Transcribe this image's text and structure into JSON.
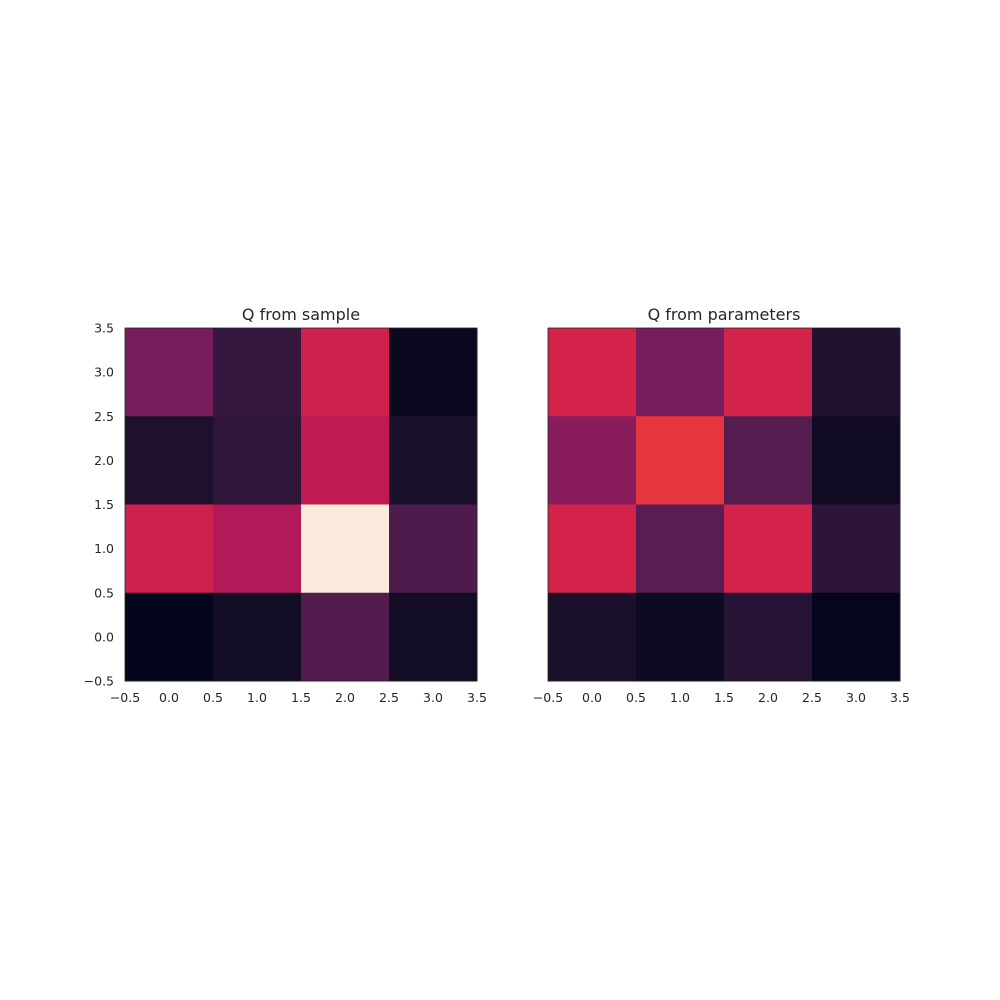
{
  "chart_data": [
    {
      "type": "heatmap",
      "title": "Q from sample",
      "xlabel": "",
      "ylabel": "",
      "xlim": [
        -0.5,
        3.5
      ],
      "ylim": [
        3.5,
        -0.5
      ],
      "xticks": [
        "−0.5",
        "0.0",
        "0.5",
        "1.0",
        "1.5",
        "2.0",
        "2.5",
        "3.0",
        "3.5"
      ],
      "yticks": [
        "−0.5",
        "0.0",
        "0.5",
        "1.0",
        "1.5",
        "2.0",
        "2.5",
        "3.0",
        "3.5"
      ],
      "colormap": "rocket",
      "grid": false,
      "values": [
        [
          0.37,
          0.2,
          0.62,
          0.03
        ],
        [
          0.12,
          0.18,
          0.57,
          0.11
        ],
        [
          0.62,
          0.52,
          1.0,
          0.26
        ],
        [
          0.0,
          0.08,
          0.27,
          0.07
        ]
      ]
    },
    {
      "type": "heatmap",
      "title": "Q from parameters",
      "xlabel": "",
      "ylabel": "",
      "xlim": [
        -0.5,
        3.5
      ],
      "ylim": [
        3.5,
        -0.5
      ],
      "xticks": [
        "−0.5",
        "0.0",
        "0.5",
        "1.0",
        "1.5",
        "2.0",
        "2.5",
        "3.0",
        "3.5"
      ],
      "yticks": [],
      "colormap": "rocket",
      "grid": false,
      "values": [
        [
          0.63,
          0.37,
          0.63,
          0.13
        ],
        [
          0.42,
          0.7,
          0.28,
          0.06
        ],
        [
          0.63,
          0.29,
          0.63,
          0.17
        ],
        [
          0.11,
          0.05,
          0.15,
          0.01
        ]
      ]
    }
  ]
}
